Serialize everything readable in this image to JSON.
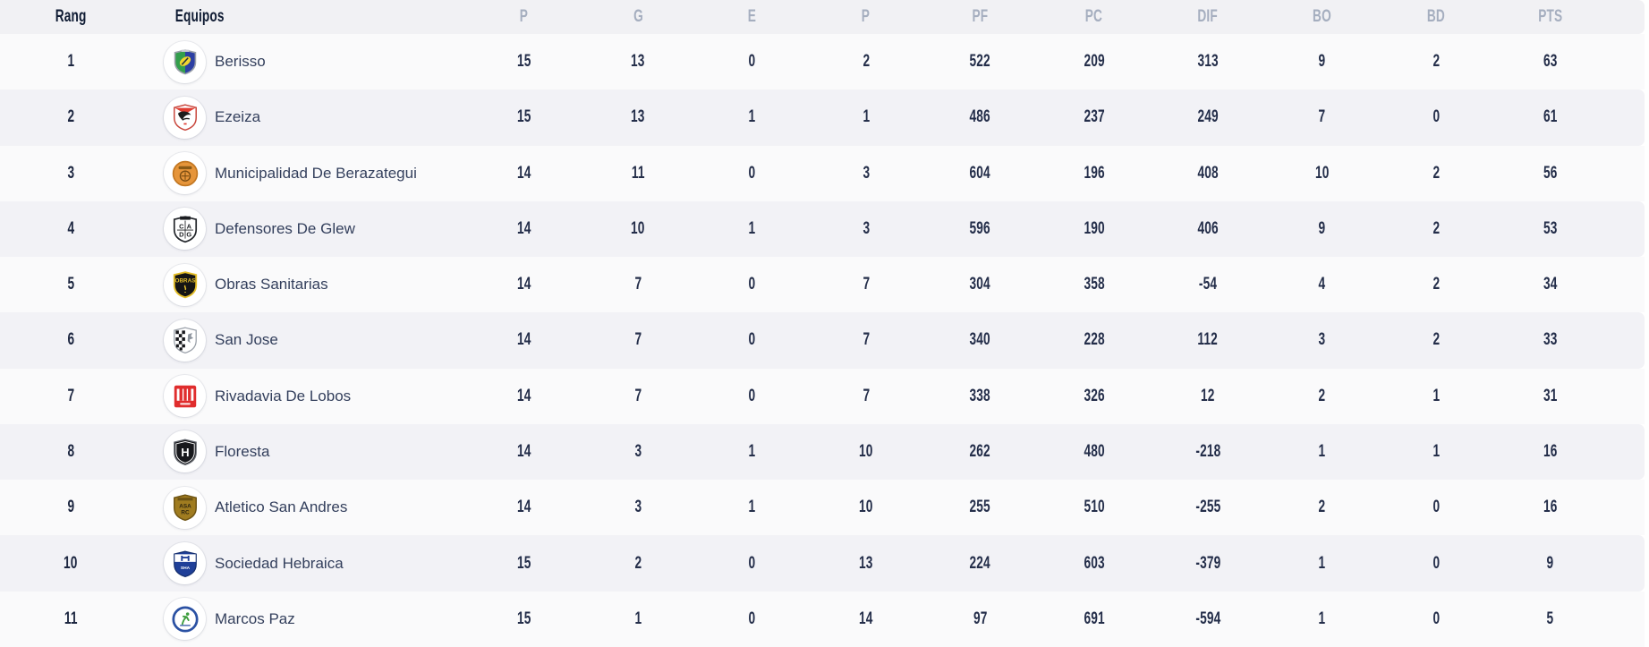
{
  "table": {
    "columns": [
      "Rang",
      "Equipos",
      "P",
      "G",
      "E",
      "P",
      "PF",
      "PC",
      "DIF",
      "BO",
      "BD",
      "PTS"
    ],
    "teams": [
      {
        "rank": "1",
        "name": "Berisso",
        "crest": "berisso-crest",
        "stats": [
          "15",
          "13",
          "0",
          "2",
          "522",
          "209",
          "313",
          "9",
          "2",
          "63"
        ]
      },
      {
        "rank": "2",
        "name": "Ezeiza",
        "crest": "ezeiza-crest",
        "stats": [
          "15",
          "13",
          "1",
          "1",
          "486",
          "237",
          "249",
          "7",
          "0",
          "61"
        ]
      },
      {
        "rank": "3",
        "name": "Municipalidad De Berazategui",
        "crest": "berazategui-crest",
        "stats": [
          "14",
          "11",
          "0",
          "3",
          "604",
          "196",
          "408",
          "10",
          "2",
          "56"
        ]
      },
      {
        "rank": "4",
        "name": "Defensores De Glew",
        "crest": "glew-crest",
        "stats": [
          "14",
          "10",
          "1",
          "3",
          "596",
          "190",
          "406",
          "9",
          "2",
          "53"
        ]
      },
      {
        "rank": "5",
        "name": "Obras Sanitarias",
        "crest": "obras-crest",
        "stats": [
          "14",
          "7",
          "0",
          "7",
          "304",
          "358",
          "-54",
          "4",
          "2",
          "34"
        ]
      },
      {
        "rank": "6",
        "name": "San Jose",
        "crest": "san-jose-crest",
        "stats": [
          "14",
          "7",
          "0",
          "7",
          "340",
          "228",
          "112",
          "3",
          "2",
          "33"
        ]
      },
      {
        "rank": "7",
        "name": "Rivadavia De Lobos",
        "crest": "rivadavia-crest",
        "stats": [
          "14",
          "7",
          "0",
          "7",
          "338",
          "326",
          "12",
          "2",
          "1",
          "31"
        ]
      },
      {
        "rank": "8",
        "name": "Floresta",
        "crest": "floresta-crest",
        "stats": [
          "14",
          "3",
          "1",
          "10",
          "262",
          "480",
          "-218",
          "1",
          "1",
          "16"
        ]
      },
      {
        "rank": "9",
        "name": "Atletico San Andres",
        "crest": "san-andres-crest",
        "stats": [
          "14",
          "3",
          "1",
          "10",
          "255",
          "510",
          "-255",
          "2",
          "0",
          "16"
        ]
      },
      {
        "rank": "10",
        "name": "Sociedad Hebraica",
        "crest": "hebraica-crest",
        "stats": [
          "15",
          "2",
          "0",
          "13",
          "224",
          "603",
          "-379",
          "1",
          "0",
          "9"
        ]
      },
      {
        "rank": "11",
        "name": "Marcos Paz",
        "crest": "marcos-paz-crest",
        "stats": [
          "15",
          "1",
          "0",
          "14",
          "97",
          "691",
          "-594",
          "1",
          "0",
          "5"
        ]
      }
    ]
  },
  "colors": {
    "header_bg": "#f1f1f4",
    "row_even_bg": "#f2f2f6",
    "row_odd_bg": "#fafafb",
    "header_muted_text": "#a5aebf",
    "header_dark_text": "#0f1b33",
    "value_text": "#242e4a",
    "team_name_text": "#333f5c"
  }
}
